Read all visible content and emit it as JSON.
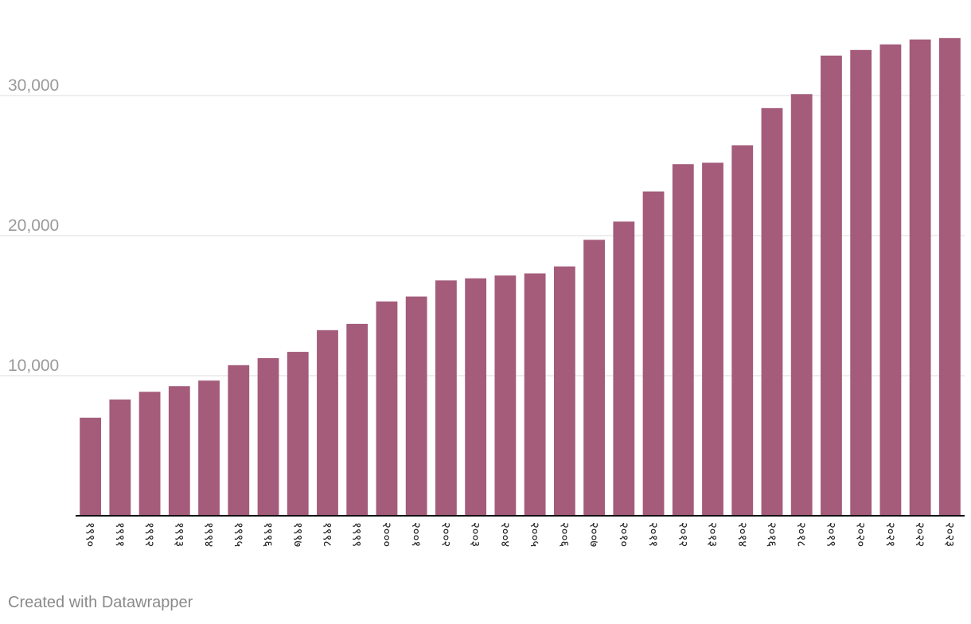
{
  "chart_data": {
    "type": "bar",
    "title": "",
    "xlabel": "",
    "ylabel": "",
    "categories": [
      "१९९०",
      "१९९१",
      "१९९२",
      "१९९३",
      "१९९४",
      "१९९५",
      "१९९६",
      "१९९७",
      "१९९८",
      "१९९९",
      "२०००",
      "२००१",
      "२००२",
      "२००३",
      "२००४",
      "२००५",
      "२००६",
      "२००७",
      "२०१०",
      "२०११",
      "२०१२",
      "२०१३",
      "२०१४",
      "२०१६",
      "२०१८",
      "२०१९",
      "२०२०",
      "२०२१",
      "२०२२",
      "२०२३"
    ],
    "values": [
      7000,
      8300,
      8850,
      9250,
      9650,
      10750,
      11250,
      11700,
      13250,
      13700,
      15300,
      15650,
      16800,
      16950,
      17150,
      17300,
      17800,
      19700,
      21000,
      23150,
      25100,
      25200,
      26450,
      29100,
      30100,
      32850,
      33250,
      33650,
      34000,
      34100
    ],
    "ylim": [
      0,
      35000
    ],
    "yticks": [
      10000,
      20000,
      30000
    ],
    "ytick_labels": [
      "10,000",
      "20,000",
      "30,000"
    ],
    "grid": true,
    "bar_color": "#a45c7a",
    "legend": "none"
  },
  "footer": {
    "credit": "Created with Datawrapper"
  }
}
